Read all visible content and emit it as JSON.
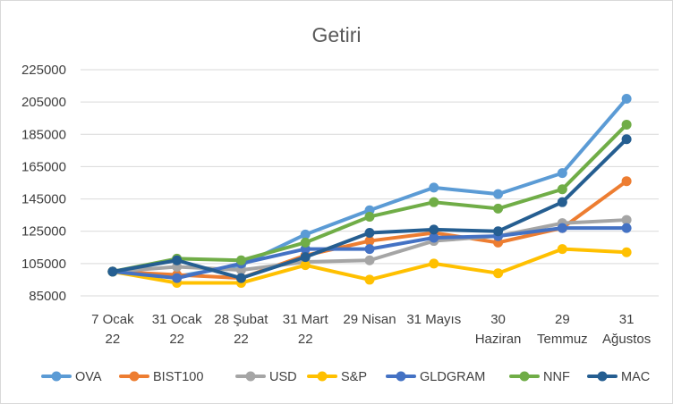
{
  "chart_data": {
    "type": "line",
    "title": "Getiri",
    "xlabel": "",
    "ylabel": "",
    "categories": [
      [
        "7 Ocak",
        "22"
      ],
      [
        "31 Ocak",
        "22"
      ],
      [
        "28 Şubat",
        "22"
      ],
      [
        "31 Mart",
        "22"
      ],
      [
        "29 Nisan"
      ],
      [
        "31 Mayıs"
      ],
      [
        "30",
        "Haziran"
      ],
      [
        "29",
        "Temmuz"
      ],
      [
        "31",
        "Ağustos"
      ]
    ],
    "ylim": [
      85000,
      225000
    ],
    "yticks": [
      85000,
      105000,
      125000,
      145000,
      165000,
      185000,
      205000,
      225000
    ],
    "grid": "horizontal",
    "legend": "bottom",
    "series": [
      {
        "name": "OVA",
        "color": "#5b9bd5",
        "values": [
          100000,
          97000,
          104000,
          123000,
          138000,
          152000,
          148000,
          161000,
          207000
        ]
      },
      {
        "name": "BIST100",
        "color": "#ed7d31",
        "values": [
          100000,
          98000,
          96000,
          110000,
          119000,
          124000,
          118000,
          127000,
          156000
        ]
      },
      {
        "name": "USD",
        "color": "#a5a5a5",
        "values": [
          100000,
          103000,
          101000,
          106000,
          107000,
          119000,
          122000,
          130000,
          132000
        ]
      },
      {
        "name": "S&P",
        "color": "#ffc000",
        "values": [
          100000,
          93000,
          93000,
          104000,
          95000,
          105000,
          99000,
          114000,
          112000
        ]
      },
      {
        "name": "GLDGRAM",
        "color": "#4472c4",
        "values": [
          100000,
          96000,
          105000,
          114000,
          114000,
          121000,
          122000,
          127000,
          127000
        ]
      },
      {
        "name": "NNF",
        "color": "#70ad47",
        "values": [
          100000,
          108000,
          107000,
          118000,
          134000,
          143000,
          139000,
          151000,
          191000
        ]
      },
      {
        "name": "MAC",
        "color": "#255e91",
        "values": [
          100000,
          107000,
          96000,
          109000,
          124000,
          126000,
          125000,
          143000,
          182000
        ]
      }
    ]
  }
}
